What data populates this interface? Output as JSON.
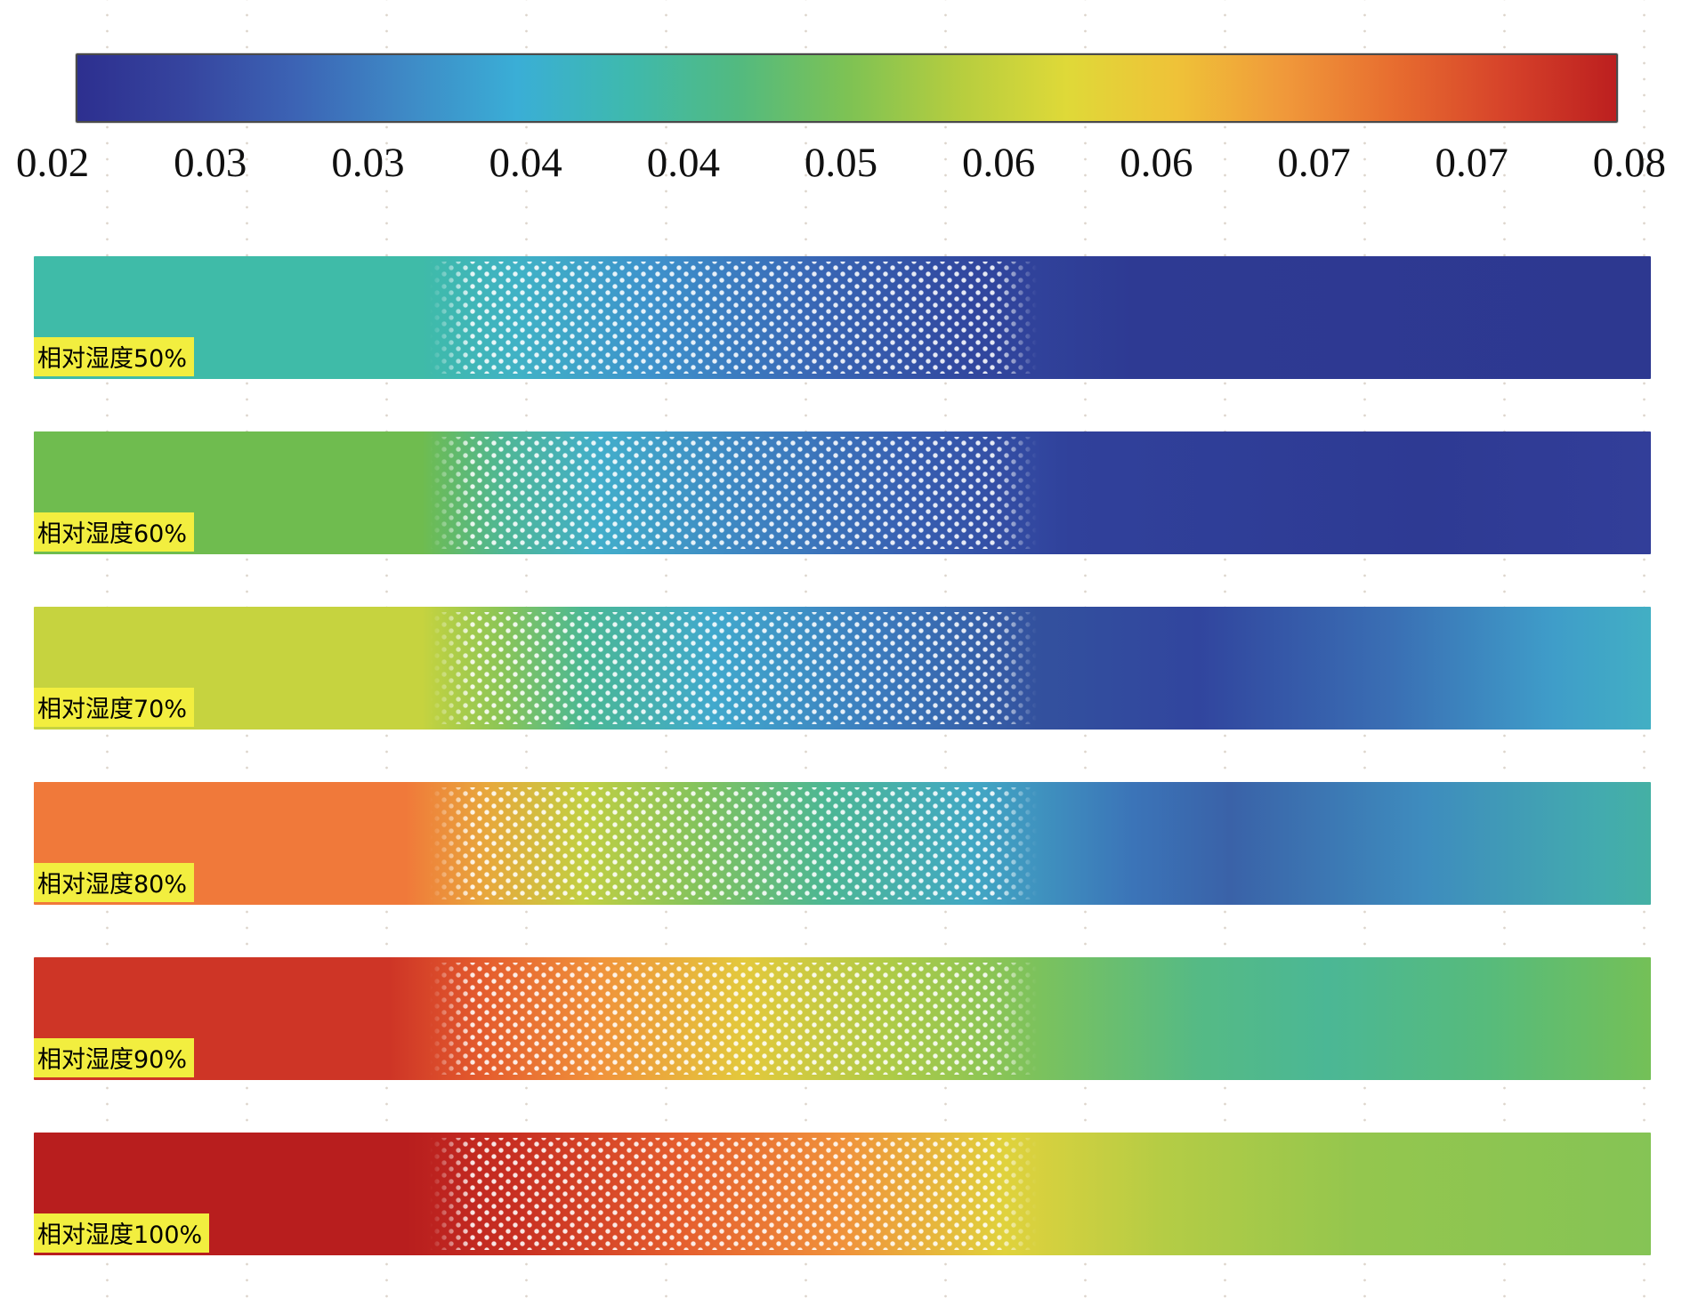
{
  "chart_data": {
    "type": "heatmap",
    "title": "",
    "description": "Concentration/humidity contour strips for six relative-humidity cases with shared horizontal colorbar",
    "colorbar": {
      "min": 0.02,
      "max": 0.08,
      "ticks": [
        "0.02",
        "0.03",
        "0.03",
        "0.04",
        "0.04",
        "0.05",
        "0.06",
        "0.06",
        "0.07",
        "0.07",
        "0.08"
      ],
      "colors": [
        "#2D2F8F",
        "#36459F",
        "#3C64B5",
        "#3E8AC6",
        "#3AAED6",
        "#3EB9AE",
        "#52BA80",
        "#7DC254",
        "#B5CD3F",
        "#DFD938",
        "#EFC238",
        "#F0983A",
        "#E76C2F",
        "#D6422A",
        "#BC1F1F"
      ]
    },
    "dotted_region": {
      "start_pct": 24.5,
      "end_pct": 62
    },
    "rows": [
      {
        "label": "相对湿度50%",
        "gradient_stops": [
          "#3FBBA8 0%",
          "#3FBBA8 24%",
          "#40B2C6 30%",
          "#3E93CC 38%",
          "#3968B6 48%",
          "#31479F 58%",
          "#2E3A93 68%",
          "#2D3890 100%"
        ]
      },
      {
        "label": "相对湿度60%",
        "gradient_stops": [
          "#6FBC4F 0%",
          "#6FBC4F 24%",
          "#4FB795 29%",
          "#42AECB 35%",
          "#3E85C2 44%",
          "#3860B2 54%",
          "#30419B 64%",
          "#2E3A93 86%",
          "#323E99 100%"
        ]
      },
      {
        "label": "相对湿度70%",
        "gradient_stops": [
          "#C6D33F 0%",
          "#C6D33F 24%",
          "#8AC557 29%",
          "#4BB894 34%",
          "#41A9CD 42%",
          "#3C7CBE 52%",
          "#33519E 62%",
          "#31459E 72%",
          "#3A6FB4 84%",
          "#3F9DC9 94%",
          "#42AFC4 100%"
        ]
      },
      {
        "label": "相对湿度80%",
        "gradient_stops": [
          "#F0793A 0%",
          "#F0793A 23%",
          "#E8A83C 28%",
          "#C2CF42 34%",
          "#84C35C 41%",
          "#4CB794 49%",
          "#42A8C4 58%",
          "#3B74B8 68%",
          "#3A62A8 74%",
          "#3E8CBE 86%",
          "#43ABAE 97%",
          "#44B0A4 100%"
        ]
      },
      {
        "label": "相对湿度90%",
        "gradient_stops": [
          "#CE3526 0%",
          "#CE3526 22%",
          "#E55E2E 28%",
          "#F0933B 35%",
          "#E3C93C 44%",
          "#AECB47 53%",
          "#7CC25C 62%",
          "#55BA85 72%",
          "#4BB795 80%",
          "#57BB7B 90%",
          "#74C057 100%"
        ]
      },
      {
        "label": "相对湿度100%",
        "gradient_stops": [
          "#B81E1E 0%",
          "#B81E1E 23%",
          "#C93022 30%",
          "#E55E2E 40%",
          "#F0923B 50%",
          "#E0D23C 60%",
          "#B4CC45 70%",
          "#94C64E 82%",
          "#85C455 100%"
        ]
      }
    ]
  }
}
